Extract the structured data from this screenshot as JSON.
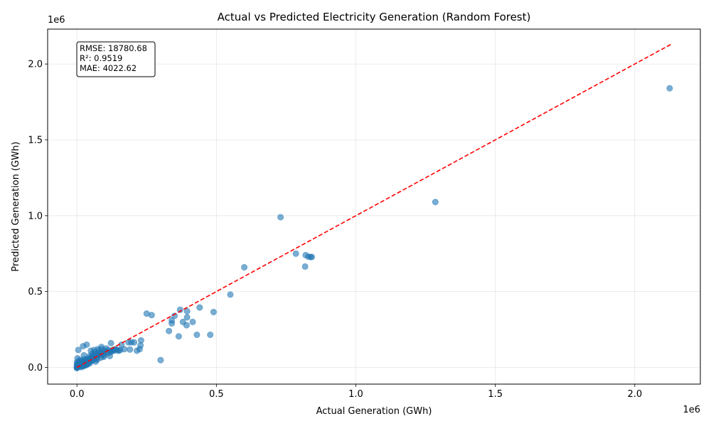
{
  "chart_data": {
    "type": "scatter",
    "title": "Actual vs Predicted Electricity Generation (Random Forest)",
    "xlabel": "Actual Generation (GWh)",
    "ylabel": "Predicted Generation (GWh)",
    "x_offset_label": "1e6",
    "y_offset_label": "1e6",
    "xlim": [
      -105000,
      2235000
    ],
    "ylim": [
      -110000,
      2230000
    ],
    "x_ticks": [
      0,
      500000,
      1000000,
      1500000,
      2000000
    ],
    "x_tick_labels": [
      "0.0",
      "0.5",
      "1.0",
      "1.5",
      "2.0"
    ],
    "y_ticks": [
      0,
      500000,
      1000000,
      1500000,
      2000000
    ],
    "y_tick_labels": [
      "0.0",
      "0.5",
      "1.0",
      "1.5",
      "2.0"
    ],
    "grid": true,
    "point_color": "#1f77b4",
    "ideal_line": {
      "from": [
        0,
        0
      ],
      "to": [
        2130000,
        2130000
      ],
      "color": "#ff0000",
      "style": "dashed"
    },
    "stats_box": {
      "position": "top-left",
      "lines": [
        "RMSE: 18780.68",
        "R²: 0.9519",
        "MAE: 4022.62"
      ]
    },
    "points": [
      [
        2125000,
        1840000
      ],
      [
        1285000,
        1090000
      ],
      [
        730000,
        990000
      ],
      [
        785000,
        750000
      ],
      [
        820000,
        740000
      ],
      [
        830000,
        730000
      ],
      [
        838000,
        728000
      ],
      [
        842000,
        728000
      ],
      [
        818000,
        665000
      ],
      [
        600000,
        660000
      ],
      [
        550000,
        480000
      ],
      [
        370000,
        380000
      ],
      [
        395000,
        370000
      ],
      [
        440000,
        395000
      ],
      [
        490000,
        365000
      ],
      [
        250000,
        355000
      ],
      [
        268000,
        345000
      ],
      [
        350000,
        340000
      ],
      [
        395000,
        330000
      ],
      [
        340000,
        310000
      ],
      [
        380000,
        300000
      ],
      [
        415000,
        300000
      ],
      [
        340000,
        290000
      ],
      [
        393000,
        278000
      ],
      [
        330000,
        240000
      ],
      [
        365000,
        205000
      ],
      [
        430000,
        215000
      ],
      [
        478000,
        215000
      ],
      [
        300000,
        48000
      ],
      [
        230000,
        178000
      ],
      [
        228000,
        145000
      ],
      [
        225000,
        120000
      ],
      [
        215000,
        110000
      ],
      [
        205000,
        165000
      ],
      [
        195000,
        165000
      ],
      [
        185000,
        165000
      ],
      [
        190000,
        118000
      ],
      [
        170000,
        120000
      ],
      [
        160000,
        150000
      ],
      [
        155000,
        115000
      ],
      [
        150000,
        110000
      ],
      [
        140000,
        120000
      ],
      [
        135000,
        118000
      ],
      [
        128000,
        115000
      ],
      [
        122000,
        160000
      ],
      [
        120000,
        105000
      ],
      [
        118000,
        75000
      ],
      [
        112000,
        115000
      ],
      [
        105000,
        125000
      ],
      [
        100000,
        110000
      ],
      [
        95000,
        95000
      ],
      [
        90000,
        120000
      ],
      [
        88000,
        135000
      ],
      [
        85000,
        100000
      ],
      [
        80000,
        110000
      ],
      [
        78000,
        85000
      ],
      [
        75000,
        120000
      ],
      [
        70000,
        90000
      ],
      [
        68000,
        75000
      ],
      [
        65000,
        100000
      ],
      [
        62000,
        115000
      ],
      [
        60000,
        80000
      ],
      [
        58000,
        70000
      ],
      [
        55000,
        90000
      ],
      [
        52000,
        65000
      ],
      [
        50000,
        110000
      ],
      [
        48000,
        55000
      ],
      [
        45000,
        75000
      ],
      [
        42000,
        60000
      ],
      [
        40000,
        45000
      ],
      [
        38000,
        35000
      ],
      [
        35000,
        150000
      ],
      [
        32000,
        50000
      ],
      [
        30000,
        40000
      ],
      [
        28000,
        55000
      ],
      [
        25000,
        80000
      ],
      [
        22000,
        140000
      ],
      [
        20000,
        45000
      ],
      [
        18000,
        30000
      ],
      [
        15000,
        25000
      ],
      [
        12000,
        35000
      ],
      [
        10000,
        20000
      ],
      [
        8000,
        40000
      ],
      [
        5000,
        115000
      ],
      [
        4000,
        15000
      ],
      [
        3000,
        10000
      ],
      [
        2000,
        60000
      ],
      [
        1500,
        5000
      ],
      [
        1000,
        25000
      ],
      [
        800,
        2000
      ],
      [
        500,
        35000
      ],
      [
        300,
        1000
      ],
      [
        200,
        15000
      ],
      [
        100,
        500
      ],
      [
        50,
        8000
      ],
      [
        0,
        0
      ],
      [
        0,
        -5000
      ],
      [
        6000,
        5000
      ],
      [
        9000,
        12000
      ],
      [
        14000,
        8000
      ],
      [
        17000,
        22000
      ],
      [
        21000,
        18000
      ],
      [
        24000,
        30000
      ],
      [
        27000,
        25000
      ],
      [
        31000,
        28000
      ],
      [
        34000,
        40000
      ],
      [
        37000,
        30000
      ],
      [
        41000,
        50000
      ],
      [
        44000,
        42000
      ],
      [
        47000,
        38000
      ],
      [
        53000,
        60000
      ],
      [
        57000,
        50000
      ],
      [
        61000,
        70000
      ],
      [
        66000,
        55000
      ],
      [
        72000,
        62000
      ],
      [
        76000,
        80000
      ],
      [
        82000,
        90000
      ],
      [
        92000,
        85000
      ],
      [
        98000,
        80000
      ],
      [
        108000,
        100000
      ],
      [
        115000,
        95000
      ],
      [
        125000,
        105000
      ],
      [
        132000,
        110000
      ],
      [
        145000,
        112000
      ],
      [
        16000,
        2000
      ],
      [
        26000,
        12000
      ],
      [
        36000,
        20000
      ],
      [
        46000,
        28000
      ],
      [
        56000,
        45000
      ],
      [
        67000,
        38000
      ],
      [
        73000,
        52000
      ],
      [
        86000,
        65000
      ],
      [
        96000,
        70000
      ],
      [
        7000,
        30000
      ],
      [
        11000,
        50000
      ],
      [
        13000,
        10000
      ],
      [
        19000,
        35000
      ],
      [
        23000,
        8000
      ],
      [
        29000,
        18000
      ],
      [
        33000,
        15000
      ],
      [
        39000,
        22000
      ]
    ]
  }
}
